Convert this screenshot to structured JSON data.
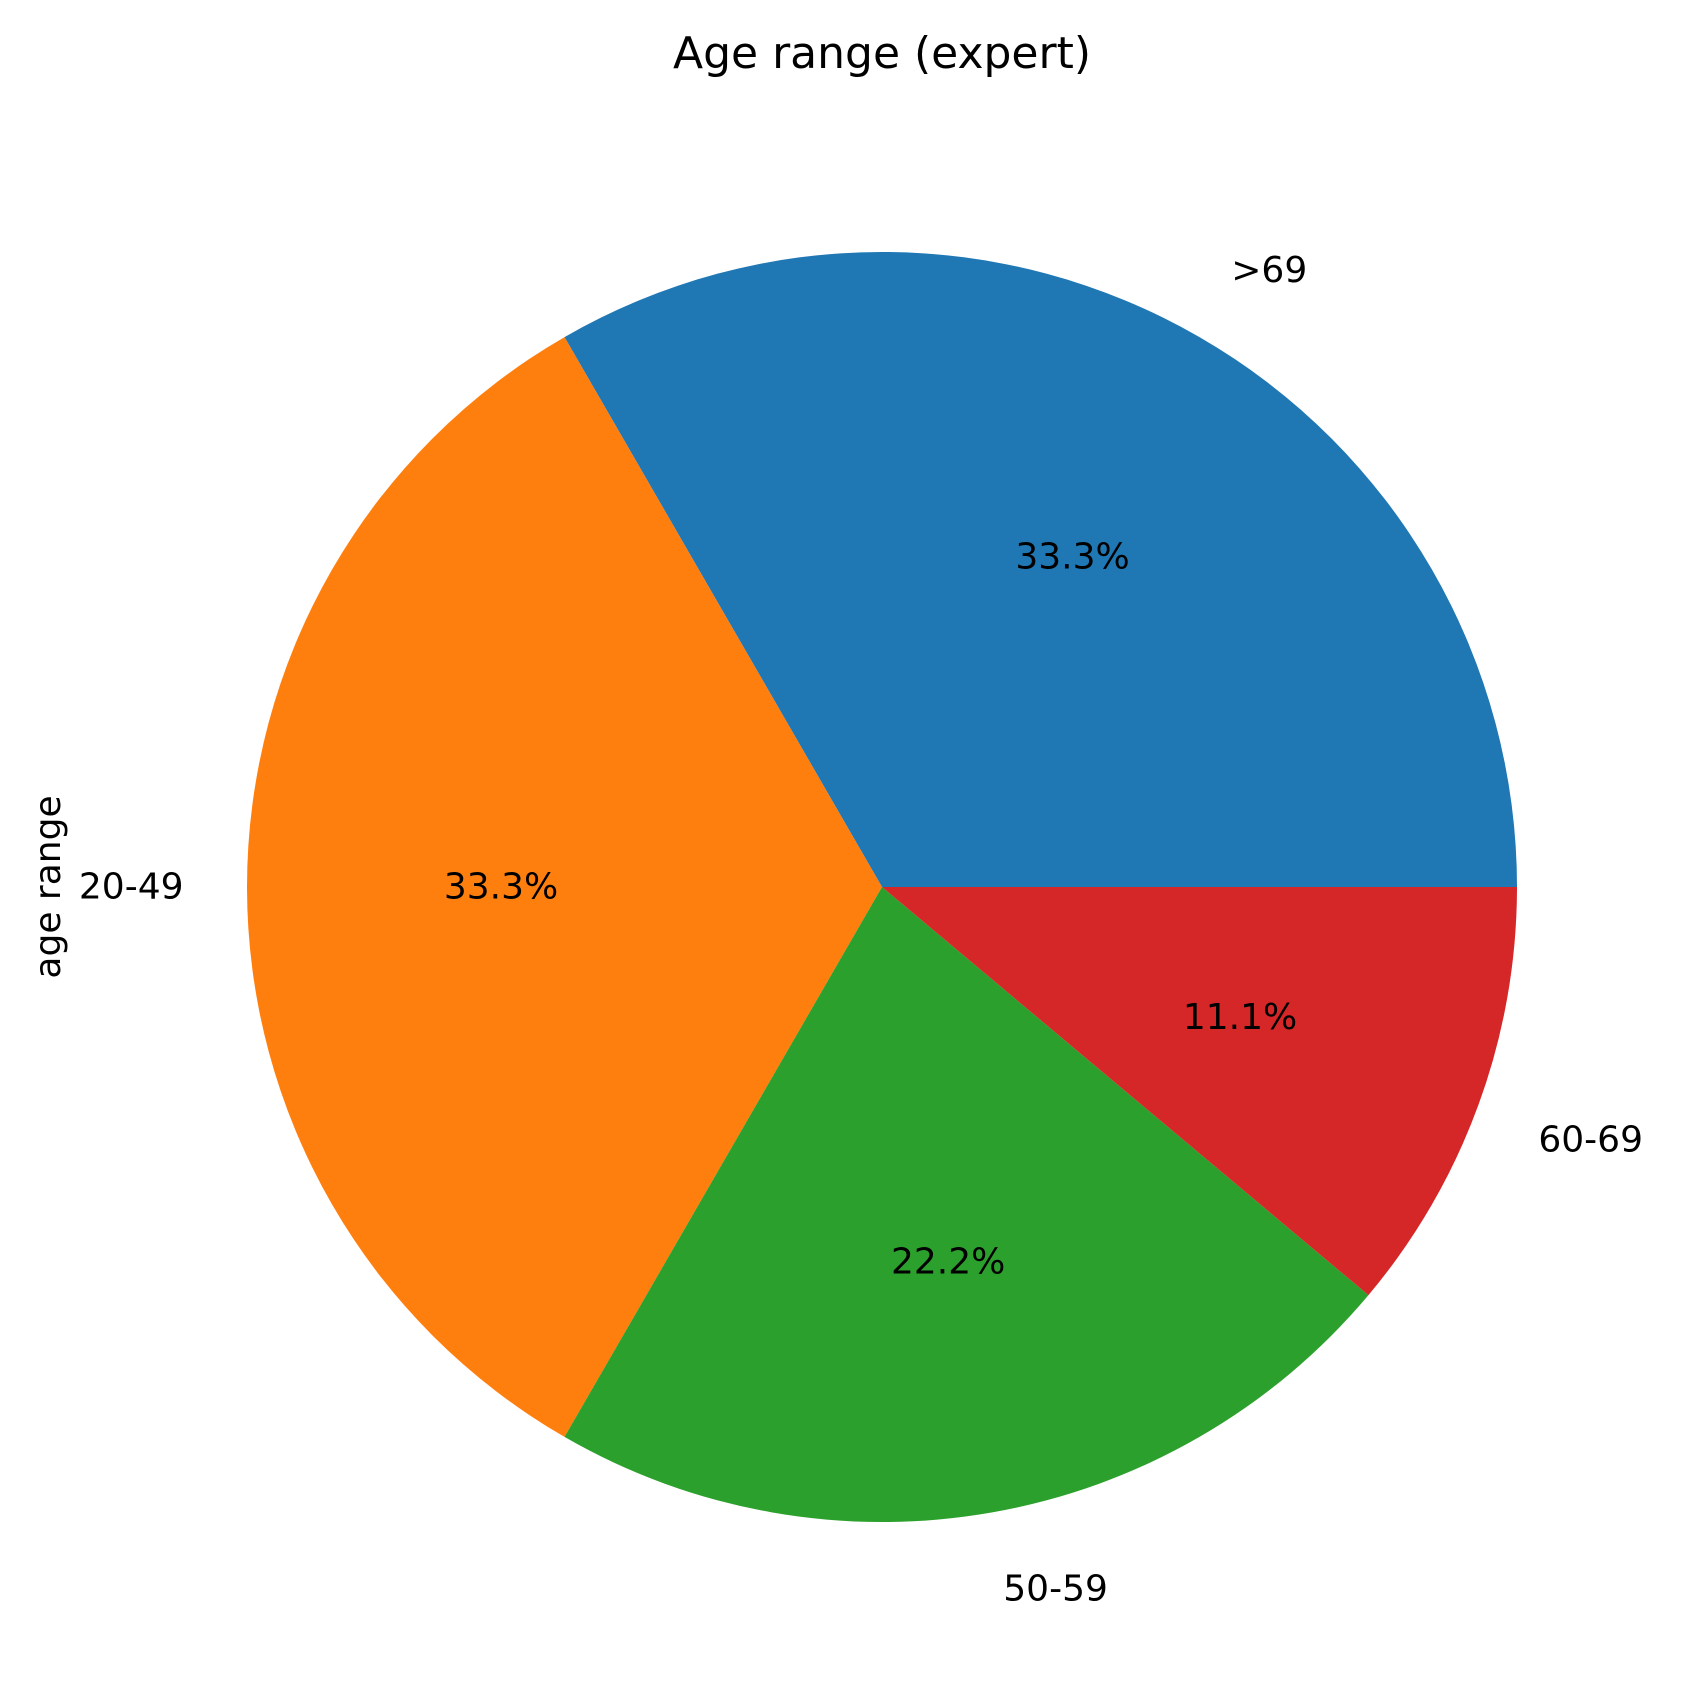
{
  "chart_data": {
    "type": "pie",
    "title": "Age range (expert)",
    "ylabel": "age range",
    "start_angle_deg": 0,
    "direction": "counterclockwise",
    "slices": [
      {
        "label": ">69",
        "value": 33.3,
        "pct_label": "33.3%",
        "color": "#1f77b4"
      },
      {
        "label": "20-49",
        "value": 33.3,
        "pct_label": "33.3%",
        "color": "#ff7f0e"
      },
      {
        "label": "50-59",
        "value": 22.2,
        "pct_label": "22.2%",
        "color": "#2ca02c"
      },
      {
        "label": "60-69",
        "value": 11.1,
        "pct_label": "11.1%",
        "color": "#d62728"
      }
    ]
  }
}
